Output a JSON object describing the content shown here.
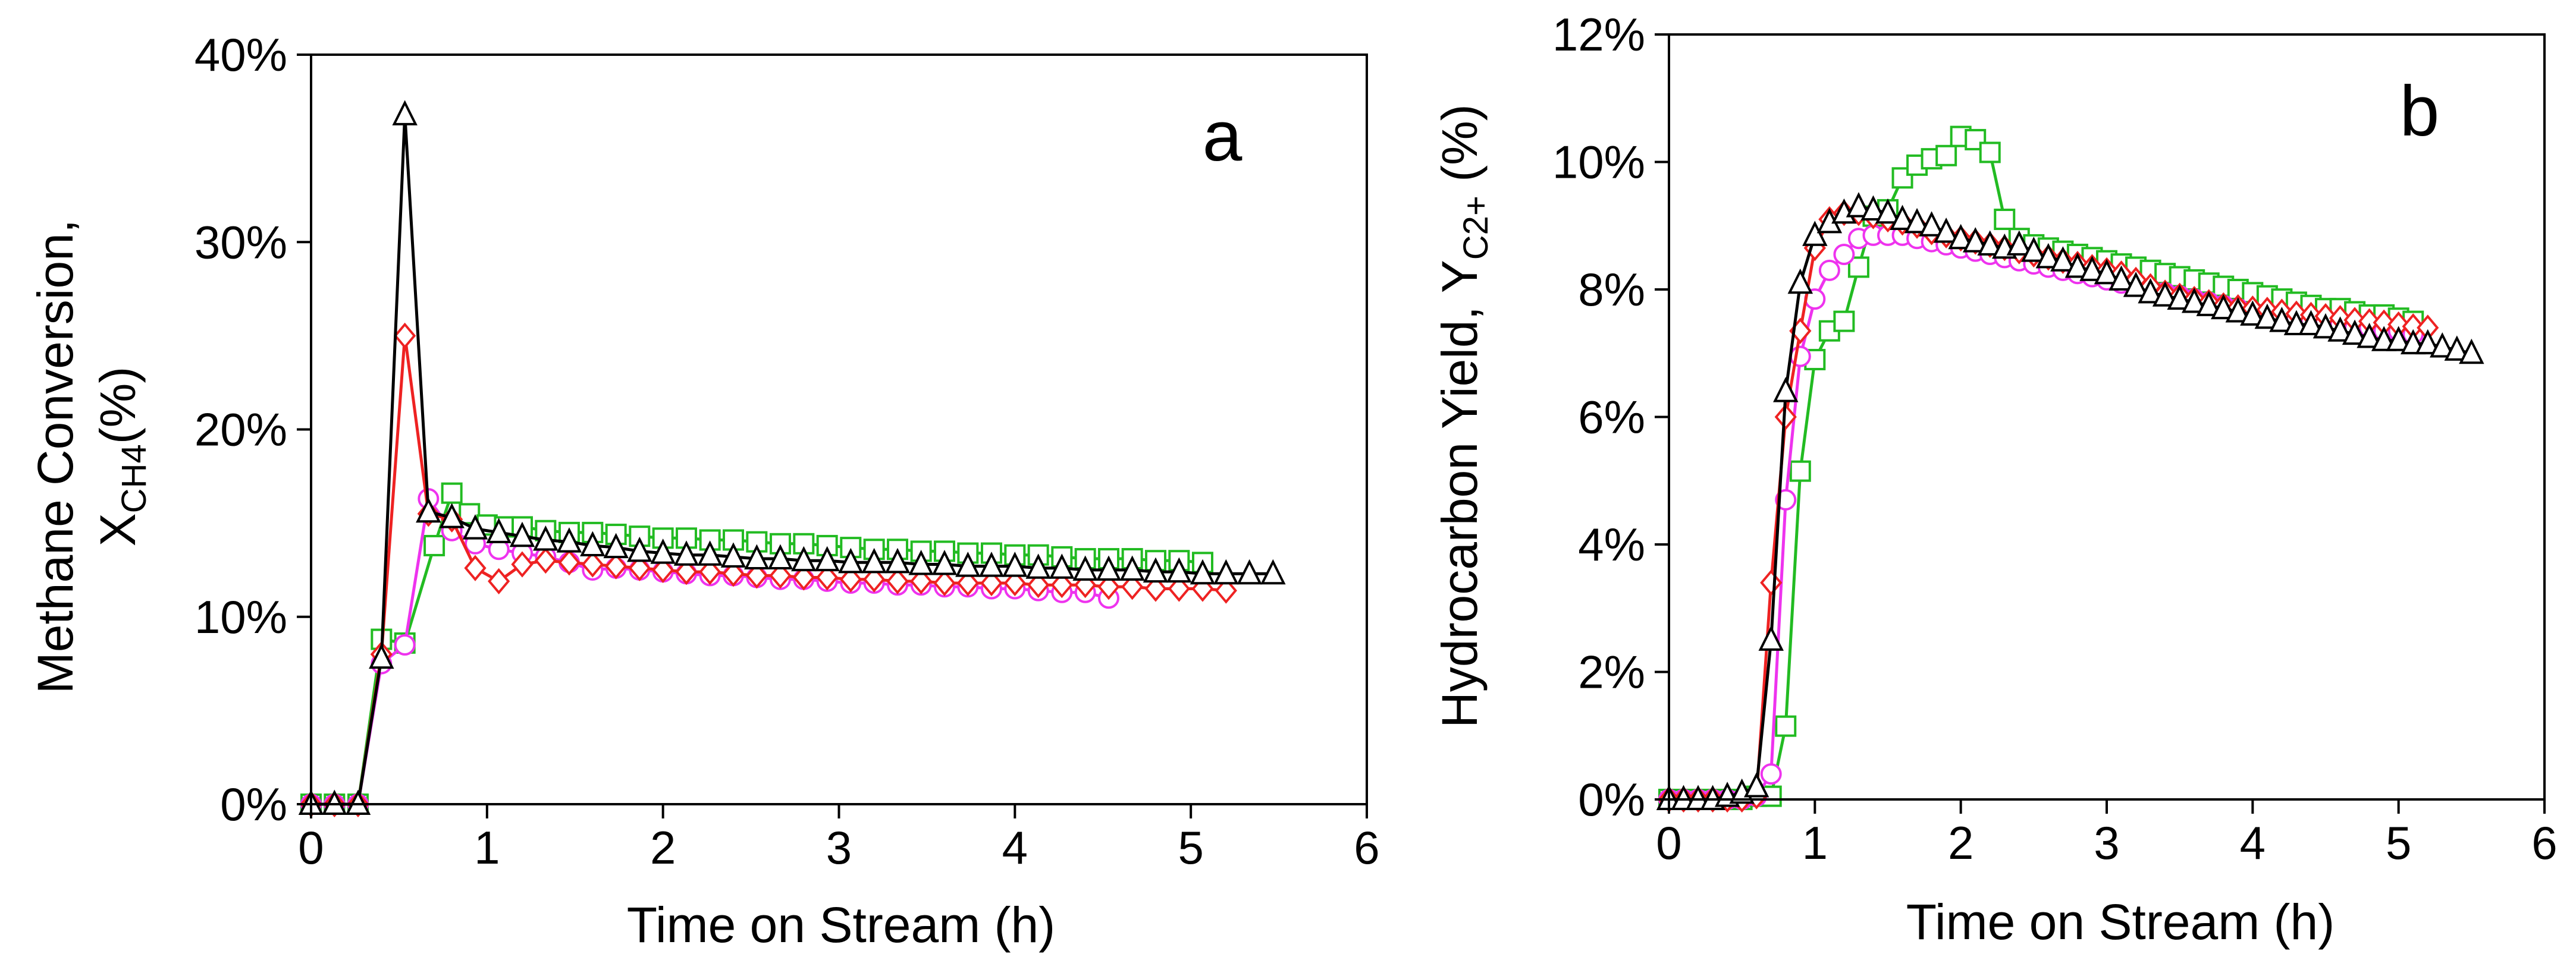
{
  "figure": {
    "background": "#ffffff"
  },
  "chart_data": [
    {
      "type": "line",
      "panel_label": "a",
      "xlabel": "Time on Stream (h)",
      "ylabel_line1": "Methane Conversion,",
      "ylabel_line2_main": "X",
      "ylabel_line2_sub": "CH4",
      "ylabel_line2_tail": "(%)",
      "xlim": [
        0,
        6
      ],
      "ylim": [
        0,
        40
      ],
      "xticks": [
        0,
        1,
        2,
        3,
        4,
        5,
        6
      ],
      "xtick_labels": [
        "0",
        "1",
        "2",
        "3",
        "4",
        "5",
        "6"
      ],
      "yticks": [
        0,
        10,
        20,
        30,
        40
      ],
      "ytick_labels": [
        "0%",
        "10%",
        "20%",
        "30%",
        "40%"
      ],
      "grid": false,
      "series": [
        {
          "name": "green-square",
          "color": "#22bb22",
          "marker": "square",
          "x": [
            0,
            0.133,
            0.267,
            0.4,
            0.533,
            0.7,
            0.8,
            0.9,
            1.0,
            1.1,
            1.2,
            1.333,
            1.467,
            1.6,
            1.733,
            1.867,
            2.0,
            2.133,
            2.267,
            2.4,
            2.533,
            2.667,
            2.8,
            2.933,
            3.067,
            3.2,
            3.333,
            3.467,
            3.6,
            3.733,
            3.867,
            4.0,
            4.133,
            4.267,
            4.4,
            4.533,
            4.667,
            4.8,
            4.933,
            5.067
          ],
          "y": [
            0,
            0,
            0,
            8.8,
            8.6,
            13.8,
            16.6,
            15.5,
            14.9,
            14.8,
            14.8,
            14.6,
            14.5,
            14.5,
            14.4,
            14.3,
            14.2,
            14.2,
            14.1,
            14.1,
            14.0,
            13.9,
            13.9,
            13.8,
            13.7,
            13.6,
            13.6,
            13.5,
            13.5,
            13.4,
            13.4,
            13.3,
            13.3,
            13.2,
            13.1,
            13.1,
            13.1,
            13.0,
            13.0,
            12.9
          ]
        },
        {
          "name": "magenta-circle",
          "color": "#ee33ee",
          "marker": "circle",
          "x": [
            0,
            0.133,
            0.267,
            0.4,
            0.533,
            0.667,
            0.8,
            0.933,
            1.067,
            1.2,
            1.333,
            1.467,
            1.6,
            1.733,
            1.867,
            2.0,
            2.133,
            2.267,
            2.4,
            2.533,
            2.667,
            2.8,
            2.933,
            3.067,
            3.2,
            3.333,
            3.467,
            3.6,
            3.733,
            3.867,
            4.0,
            4.133,
            4.267,
            4.4,
            4.533
          ],
          "y": [
            0,
            0,
            0,
            7.5,
            8.5,
            16.3,
            14.6,
            13.9,
            13.6,
            13.4,
            13.2,
            12.9,
            12.5,
            12.6,
            12.5,
            12.4,
            12.3,
            12.2,
            12.2,
            12.1,
            12.0,
            12.0,
            11.9,
            11.8,
            11.8,
            11.7,
            11.7,
            11.6,
            11.6,
            11.5,
            11.5,
            11.4,
            11.3,
            11.3,
            11.0
          ]
        },
        {
          "name": "red-diamond",
          "color": "#ee2222",
          "marker": "diamond",
          "x": [
            0,
            0.133,
            0.267,
            0.4,
            0.533,
            0.667,
            0.8,
            0.933,
            1.067,
            1.2,
            1.333,
            1.467,
            1.6,
            1.733,
            1.867,
            2.0,
            2.133,
            2.267,
            2.4,
            2.533,
            2.667,
            2.8,
            2.933,
            3.067,
            3.2,
            3.333,
            3.467,
            3.6,
            3.733,
            3.867,
            4.0,
            4.133,
            4.267,
            4.4,
            4.533,
            4.667,
            4.8,
            4.933,
            5.067,
            5.2
          ],
          "y": [
            0,
            0,
            0,
            8.0,
            25.0,
            15.5,
            15.2,
            12.6,
            11.9,
            12.8,
            13.0,
            12.9,
            12.8,
            12.7,
            12.6,
            12.5,
            12.4,
            12.4,
            12.3,
            12.2,
            12.2,
            12.1,
            12.1,
            12.0,
            12.0,
            11.9,
            11.9,
            11.8,
            11.8,
            11.8,
            11.8,
            11.7,
            11.7,
            11.7,
            11.6,
            11.6,
            11.5,
            11.5,
            11.5,
            11.4
          ]
        },
        {
          "name": "black-triangle",
          "color": "#000000",
          "marker": "triangle",
          "x": [
            0,
            0.133,
            0.267,
            0.4,
            0.533,
            0.667,
            0.8,
            0.933,
            1.067,
            1.2,
            1.333,
            1.467,
            1.6,
            1.733,
            1.867,
            2.0,
            2.133,
            2.267,
            2.4,
            2.533,
            2.667,
            2.8,
            2.933,
            3.067,
            3.2,
            3.333,
            3.467,
            3.6,
            3.733,
            3.867,
            4.0,
            4.133,
            4.267,
            4.4,
            4.533,
            4.667,
            4.8,
            4.933,
            5.067,
            5.2,
            5.333,
            5.467
          ],
          "y": [
            0,
            0,
            0,
            7.8,
            36.8,
            15.6,
            15.3,
            14.7,
            14.5,
            14.3,
            14.1,
            14.0,
            13.8,
            13.7,
            13.5,
            13.4,
            13.3,
            13.3,
            13.2,
            13.1,
            13.1,
            13.0,
            13.0,
            12.9,
            12.9,
            12.9,
            12.8,
            12.8,
            12.7,
            12.7,
            12.7,
            12.6,
            12.6,
            12.5,
            12.5,
            12.5,
            12.4,
            12.4,
            12.3,
            12.3,
            12.3,
            12.3
          ]
        }
      ]
    },
    {
      "type": "line",
      "panel_label": "b",
      "xlabel": "Time on Stream (h)",
      "ylabel_main": "Hydrocarbon Yield,  Y",
      "ylabel_sub": "C2+",
      "ylabel_tail": " (%)",
      "xlim": [
        0,
        6
      ],
      "ylim": [
        0,
        12
      ],
      "xticks": [
        0,
        1,
        2,
        3,
        4,
        5,
        6
      ],
      "xtick_labels": [
        "0",
        "1",
        "2",
        "3",
        "4",
        "5",
        "6"
      ],
      "yticks": [
        0,
        2,
        4,
        6,
        8,
        10,
        12
      ],
      "ytick_labels": [
        "0%",
        "2%",
        "4%",
        "6%",
        "8%",
        "10%",
        "12%"
      ],
      "grid": false,
      "series": [
        {
          "name": "green-square",
          "color": "#22bb22",
          "marker": "square",
          "x": [
            0,
            0.1,
            0.2,
            0.3,
            0.4,
            0.5,
            0.6,
            0.7,
            0.8,
            0.9,
            1.0,
            1.1,
            1.2,
            1.3,
            1.4,
            1.5,
            1.6,
            1.7,
            1.8,
            1.9,
            2.0,
            2.1,
            2.2,
            2.3,
            2.4,
            2.5,
            2.6,
            2.7,
            2.8,
            2.9,
            3.0,
            3.1,
            3.2,
            3.3,
            3.4,
            3.5,
            3.6,
            3.7,
            3.8,
            3.9,
            4.0,
            4.1,
            4.2,
            4.3,
            4.4,
            4.5,
            4.6,
            4.7,
            4.8,
            4.9,
            5.0,
            5.1
          ],
          "y": [
            0,
            0,
            0,
            0,
            0,
            0,
            0.05,
            0.05,
            1.15,
            5.15,
            6.9,
            7.35,
            7.5,
            8.35,
            9.15,
            9.25,
            9.75,
            9.95,
            10.05,
            10.1,
            10.4,
            10.35,
            10.15,
            9.1,
            8.8,
            8.7,
            8.65,
            8.6,
            8.55,
            8.5,
            8.45,
            8.4,
            8.35,
            8.3,
            8.25,
            8.2,
            8.15,
            8.1,
            8.05,
            8.0,
            7.95,
            7.9,
            7.85,
            7.8,
            7.75,
            7.7,
            7.7,
            7.65,
            7.6,
            7.6,
            7.55,
            7.5
          ]
        },
        {
          "name": "magenta-circle",
          "color": "#ee33ee",
          "marker": "circle",
          "x": [
            0,
            0.1,
            0.2,
            0.3,
            0.4,
            0.5,
            0.6,
            0.7,
            0.8,
            0.9,
            1.0,
            1.1,
            1.2,
            1.3,
            1.4,
            1.5,
            1.6,
            1.7,
            1.8,
            1.9,
            2.0,
            2.1,
            2.2,
            2.3,
            2.4,
            2.5,
            2.6,
            2.7,
            2.8,
            2.9,
            3.0,
            3.1,
            3.2,
            3.3,
            3.4,
            3.5,
            3.6,
            3.7,
            3.8,
            3.9,
            4.0,
            4.1,
            4.2,
            4.3,
            4.4,
            4.5,
            4.6,
            4.7,
            4.8,
            4.9,
            5.0,
            5.1
          ],
          "y": [
            0,
            0,
            0,
            0,
            0,
            0,
            0.05,
            0.4,
            4.7,
            6.95,
            7.85,
            8.3,
            8.55,
            8.8,
            8.85,
            8.85,
            8.85,
            8.8,
            8.75,
            8.7,
            8.65,
            8.6,
            8.55,
            8.5,
            8.45,
            8.4,
            8.35,
            8.3,
            8.25,
            8.2,
            8.15,
            8.1,
            8.05,
            8.0,
            7.95,
            7.9,
            7.85,
            7.8,
            7.75,
            7.7,
            7.65,
            7.6,
            7.6,
            7.55,
            7.5,
            7.5,
            7.45,
            7.4,
            7.4,
            7.35,
            7.35,
            7.3
          ]
        },
        {
          "name": "red-diamond",
          "color": "#ee2222",
          "marker": "diamond",
          "x": [
            0,
            0.1,
            0.2,
            0.3,
            0.4,
            0.5,
            0.6,
            0.7,
            0.8,
            0.9,
            1.0,
            1.1,
            1.2,
            1.3,
            1.4,
            1.5,
            1.6,
            1.7,
            1.8,
            1.9,
            2.0,
            2.1,
            2.2,
            2.3,
            2.4,
            2.5,
            2.6,
            2.7,
            2.8,
            2.9,
            3.0,
            3.1,
            3.2,
            3.3,
            3.4,
            3.5,
            3.6,
            3.7,
            3.8,
            3.9,
            4.0,
            4.1,
            4.2,
            4.3,
            4.4,
            4.5,
            4.6,
            4.7,
            4.8,
            4.9,
            5.0,
            5.1,
            5.2
          ],
          "y": [
            0,
            0,
            0,
            0,
            0,
            0,
            0.05,
            3.4,
            6.0,
            7.35,
            8.65,
            9.1,
            9.2,
            9.2,
            9.15,
            9.1,
            9.05,
            9.0,
            8.9,
            8.85,
            8.8,
            8.75,
            8.7,
            8.65,
            8.6,
            8.55,
            8.5,
            8.45,
            8.4,
            8.35,
            8.3,
            8.25,
            8.15,
            8.05,
            7.95,
            7.9,
            7.85,
            7.8,
            7.75,
            7.72,
            7.7,
            7.68,
            7.65,
            7.62,
            7.6,
            7.58,
            7.55,
            7.52,
            7.5,
            7.48,
            7.45,
            7.42,
            7.4
          ]
        },
        {
          "name": "black-triangle",
          "color": "#000000",
          "marker": "triangle",
          "x": [
            0,
            0.1,
            0.2,
            0.3,
            0.4,
            0.5,
            0.6,
            0.7,
            0.8,
            0.9,
            1.0,
            1.1,
            1.2,
            1.3,
            1.4,
            1.5,
            1.6,
            1.7,
            1.8,
            1.9,
            2.0,
            2.1,
            2.2,
            2.3,
            2.4,
            2.5,
            2.6,
            2.7,
            2.8,
            2.9,
            3.0,
            3.1,
            3.2,
            3.3,
            3.4,
            3.5,
            3.6,
            3.7,
            3.8,
            3.9,
            4.0,
            4.1,
            4.2,
            4.3,
            4.4,
            4.5,
            4.6,
            4.7,
            4.8,
            4.9,
            5.0,
            5.1,
            5.2,
            5.3,
            5.4,
            5.5
          ],
          "y": [
            0,
            0,
            0,
            0,
            0.05,
            0.1,
            0.2,
            2.5,
            6.4,
            8.1,
            8.85,
            9.05,
            9.2,
            9.3,
            9.25,
            9.2,
            9.1,
            9.05,
            9.0,
            8.9,
            8.8,
            8.75,
            8.7,
            8.65,
            8.7,
            8.6,
            8.5,
            8.45,
            8.35,
            8.3,
            8.25,
            8.15,
            8.05,
            7.95,
            7.9,
            7.85,
            7.8,
            7.75,
            7.7,
            7.65,
            7.6,
            7.55,
            7.5,
            7.45,
            7.45,
            7.4,
            7.35,
            7.3,
            7.25,
            7.2,
            7.2,
            7.15,
            7.15,
            7.1,
            7.05,
            7.0
          ]
        }
      ]
    }
  ]
}
